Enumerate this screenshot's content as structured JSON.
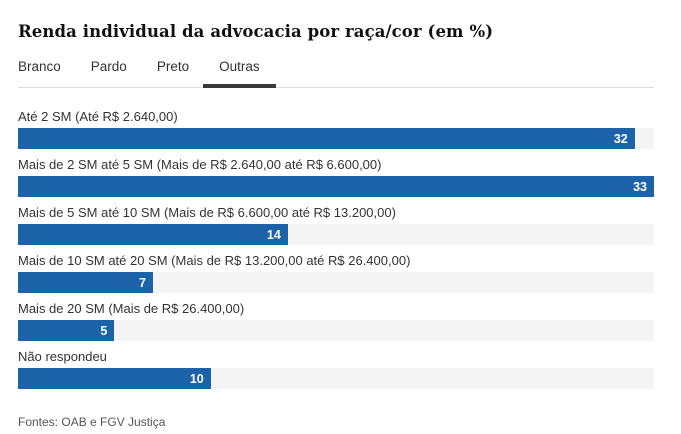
{
  "page": {
    "title": "Renda individual da advocacia por raça/cor (em %)",
    "source": "Fontes: OAB e FGV Justiça"
  },
  "tabs": [
    {
      "label": "Branco",
      "active": false
    },
    {
      "label": "Pardo",
      "active": false
    },
    {
      "label": "Preto",
      "active": false
    },
    {
      "label": "Outras",
      "active": true
    }
  ],
  "chart_data": {
    "type": "bar",
    "orientation": "horizontal",
    "title": "Renda individual da advocacia por raça/cor (em %)",
    "selected_series": "Outras",
    "categories": [
      "Até 2 SM (Até R$ 2.640,00)",
      "Mais de 2 SM até 5 SM (Mais de R$ 2.640,00 até R$ 6.600,00)",
      "Mais de 5 SM até 10 SM (Mais de R$ 6.600,00 até R$ 13.200,00)",
      "Mais de 10 SM até 20 SM (Mais de R$ 13.200,00 até R$ 26.400,00)",
      "Mais de 20 SM (Mais de R$ 26.400,00)",
      "Não respondeu"
    ],
    "values": [
      32,
      33,
      14,
      7,
      5,
      10
    ],
    "xlim": [
      0,
      33
    ],
    "unit": "%",
    "legend_position": "none",
    "grid": false,
    "source": "Fontes: OAB e FGV Justiça"
  },
  "colors": {
    "bar": "#1b62a8",
    "bar_track": "#f4f4f4",
    "active_tab_underline": "#3a3a3a",
    "tab_divider": "#dddddd",
    "value_text": "#ffffff"
  }
}
